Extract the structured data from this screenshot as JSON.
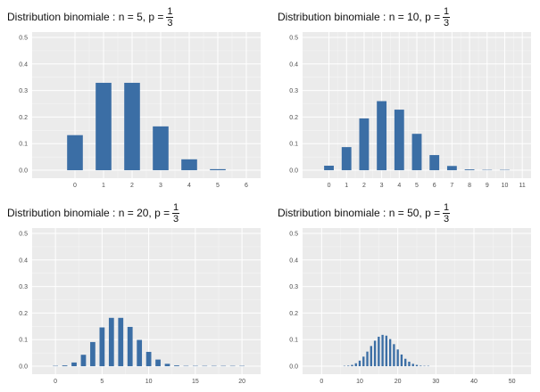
{
  "chart_data": [
    {
      "type": "bar",
      "title": {
        "prefix": "Distribution binomiale :  n = 5, p =",
        "num": "1",
        "den": "3"
      },
      "categories": [
        0,
        1,
        2,
        3,
        4,
        5
      ],
      "values": [
        0.132,
        0.329,
        0.329,
        0.165,
        0.041,
        0.004
      ],
      "xlim": [
        -1.5,
        6.5
      ],
      "ylim": [
        -0.03,
        0.52
      ],
      "xticks": [
        0,
        1,
        2,
        3,
        4,
        5,
        6
      ],
      "yticks": [
        "0.0",
        "0.1",
        "0.2",
        "0.3",
        "0.4",
        "0.5"
      ],
      "grid": true,
      "color": "#3b6ea5",
      "background": "#ebebeb"
    },
    {
      "type": "bar",
      "title": {
        "prefix": "Distribution binomiale :  n = 10, p =",
        "num": "1",
        "den": "3"
      },
      "categories": [
        0,
        1,
        2,
        3,
        4,
        5,
        6,
        7,
        8,
        9,
        10
      ],
      "values": [
        0.017,
        0.087,
        0.195,
        0.26,
        0.228,
        0.137,
        0.057,
        0.016,
        0.003,
        0.0003,
        2e-05
      ],
      "xlim": [
        -1.5,
        11.5
      ],
      "ylim": [
        -0.03,
        0.52
      ],
      "xticks": [
        0,
        1,
        2,
        3,
        4,
        5,
        6,
        7,
        8,
        9,
        10,
        11
      ],
      "yticks": [
        "0.0",
        "0.1",
        "0.2",
        "0.3",
        "0.4",
        "0.5"
      ],
      "grid": true,
      "color": "#3b6ea5",
      "background": "#ebebeb"
    },
    {
      "type": "bar",
      "title": {
        "prefix": "Distribution binomiale :  n = 20, p =",
        "num": "1",
        "den": "3"
      },
      "categories": [
        0,
        1,
        2,
        3,
        4,
        5,
        6,
        7,
        8,
        9,
        10,
        11,
        12,
        13,
        14,
        15,
        16,
        17,
        18,
        19,
        20
      ],
      "values": [
        0.0003,
        0.003,
        0.014,
        0.043,
        0.091,
        0.146,
        0.182,
        0.182,
        0.148,
        0.099,
        0.054,
        0.025,
        0.009,
        0.003,
        0.0008,
        0.0002,
        0,
        0,
        0,
        0,
        0
      ],
      "xlim": [
        -2.5,
        22
      ],
      "ylim": [
        -0.03,
        0.52
      ],
      "xticks": [
        0,
        5,
        10,
        15,
        20
      ],
      "yticks": [
        "0.0",
        "0.1",
        "0.2",
        "0.3",
        "0.4",
        "0.5"
      ],
      "grid": true,
      "color": "#3b6ea5",
      "background": "#ebebeb"
    },
    {
      "type": "bar",
      "title": {
        "prefix": "Distribution binomiale :  n = 50, p =",
        "num": "1",
        "den": "3"
      },
      "categories": [
        6,
        7,
        8,
        9,
        10,
        11,
        12,
        13,
        14,
        15,
        16,
        17,
        18,
        19,
        20,
        21,
        22,
        23,
        24,
        25,
        26,
        27,
        28
      ],
      "values": [
        0.0007,
        0.002,
        0.005,
        0.011,
        0.021,
        0.036,
        0.055,
        0.076,
        0.096,
        0.111,
        0.118,
        0.115,
        0.102,
        0.083,
        0.063,
        0.044,
        0.028,
        0.017,
        0.009,
        0.005,
        0.002,
        0.001,
        0.0004
      ],
      "xlim": [
        -5,
        55
      ],
      "ylim": [
        -0.03,
        0.52
      ],
      "xticks": [
        0,
        10,
        20,
        30,
        40,
        50
      ],
      "yticks": [
        "0.0",
        "0.1",
        "0.2",
        "0.3",
        "0.4",
        "0.5"
      ],
      "grid": true,
      "color": "#3b6ea5",
      "background": "#ebebeb"
    }
  ]
}
